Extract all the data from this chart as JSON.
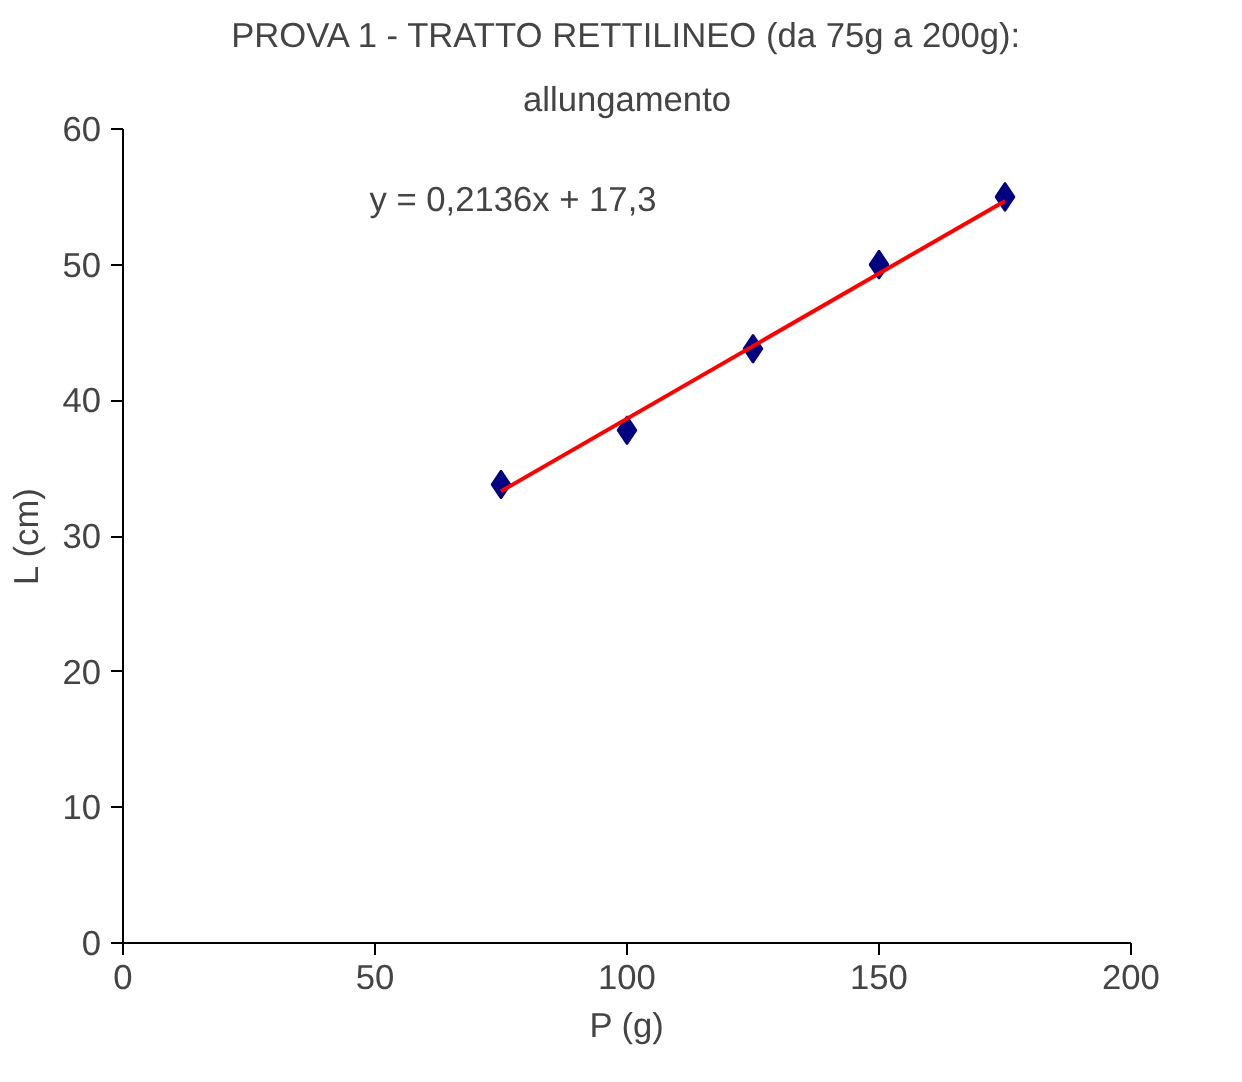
{
  "chart_data": {
    "type": "scatter",
    "title": "PROVA 1 - TRATTO RETTILINEO (da 75g a 200g):",
    "subtitle": "allungamento",
    "xlabel": "P (g)",
    "ylabel": "L (cm)",
    "x": [
      75,
      100,
      125,
      150,
      175
    ],
    "series": [
      {
        "color": "#000080",
        "marker": "diamond",
        "values": [
          33.8,
          37.8,
          43.8,
          50,
          55
        ]
      },
      {
        "type": "line",
        "color": "#ff0000",
        "marker": "none",
        "x": [
          75,
          175
        ],
        "values": [
          33.3,
          54.7
        ]
      }
    ],
    "xlim": [
      0,
      200
    ],
    "xticks": [
      0,
      50,
      100,
      150,
      200
    ],
    "ylim": [
      0,
      60
    ],
    "yticks": [
      0,
      10,
      20,
      30,
      40,
      50,
      60
    ],
    "grid": false,
    "annotations": [
      "y = 0,2136x + 17,3"
    ]
  }
}
